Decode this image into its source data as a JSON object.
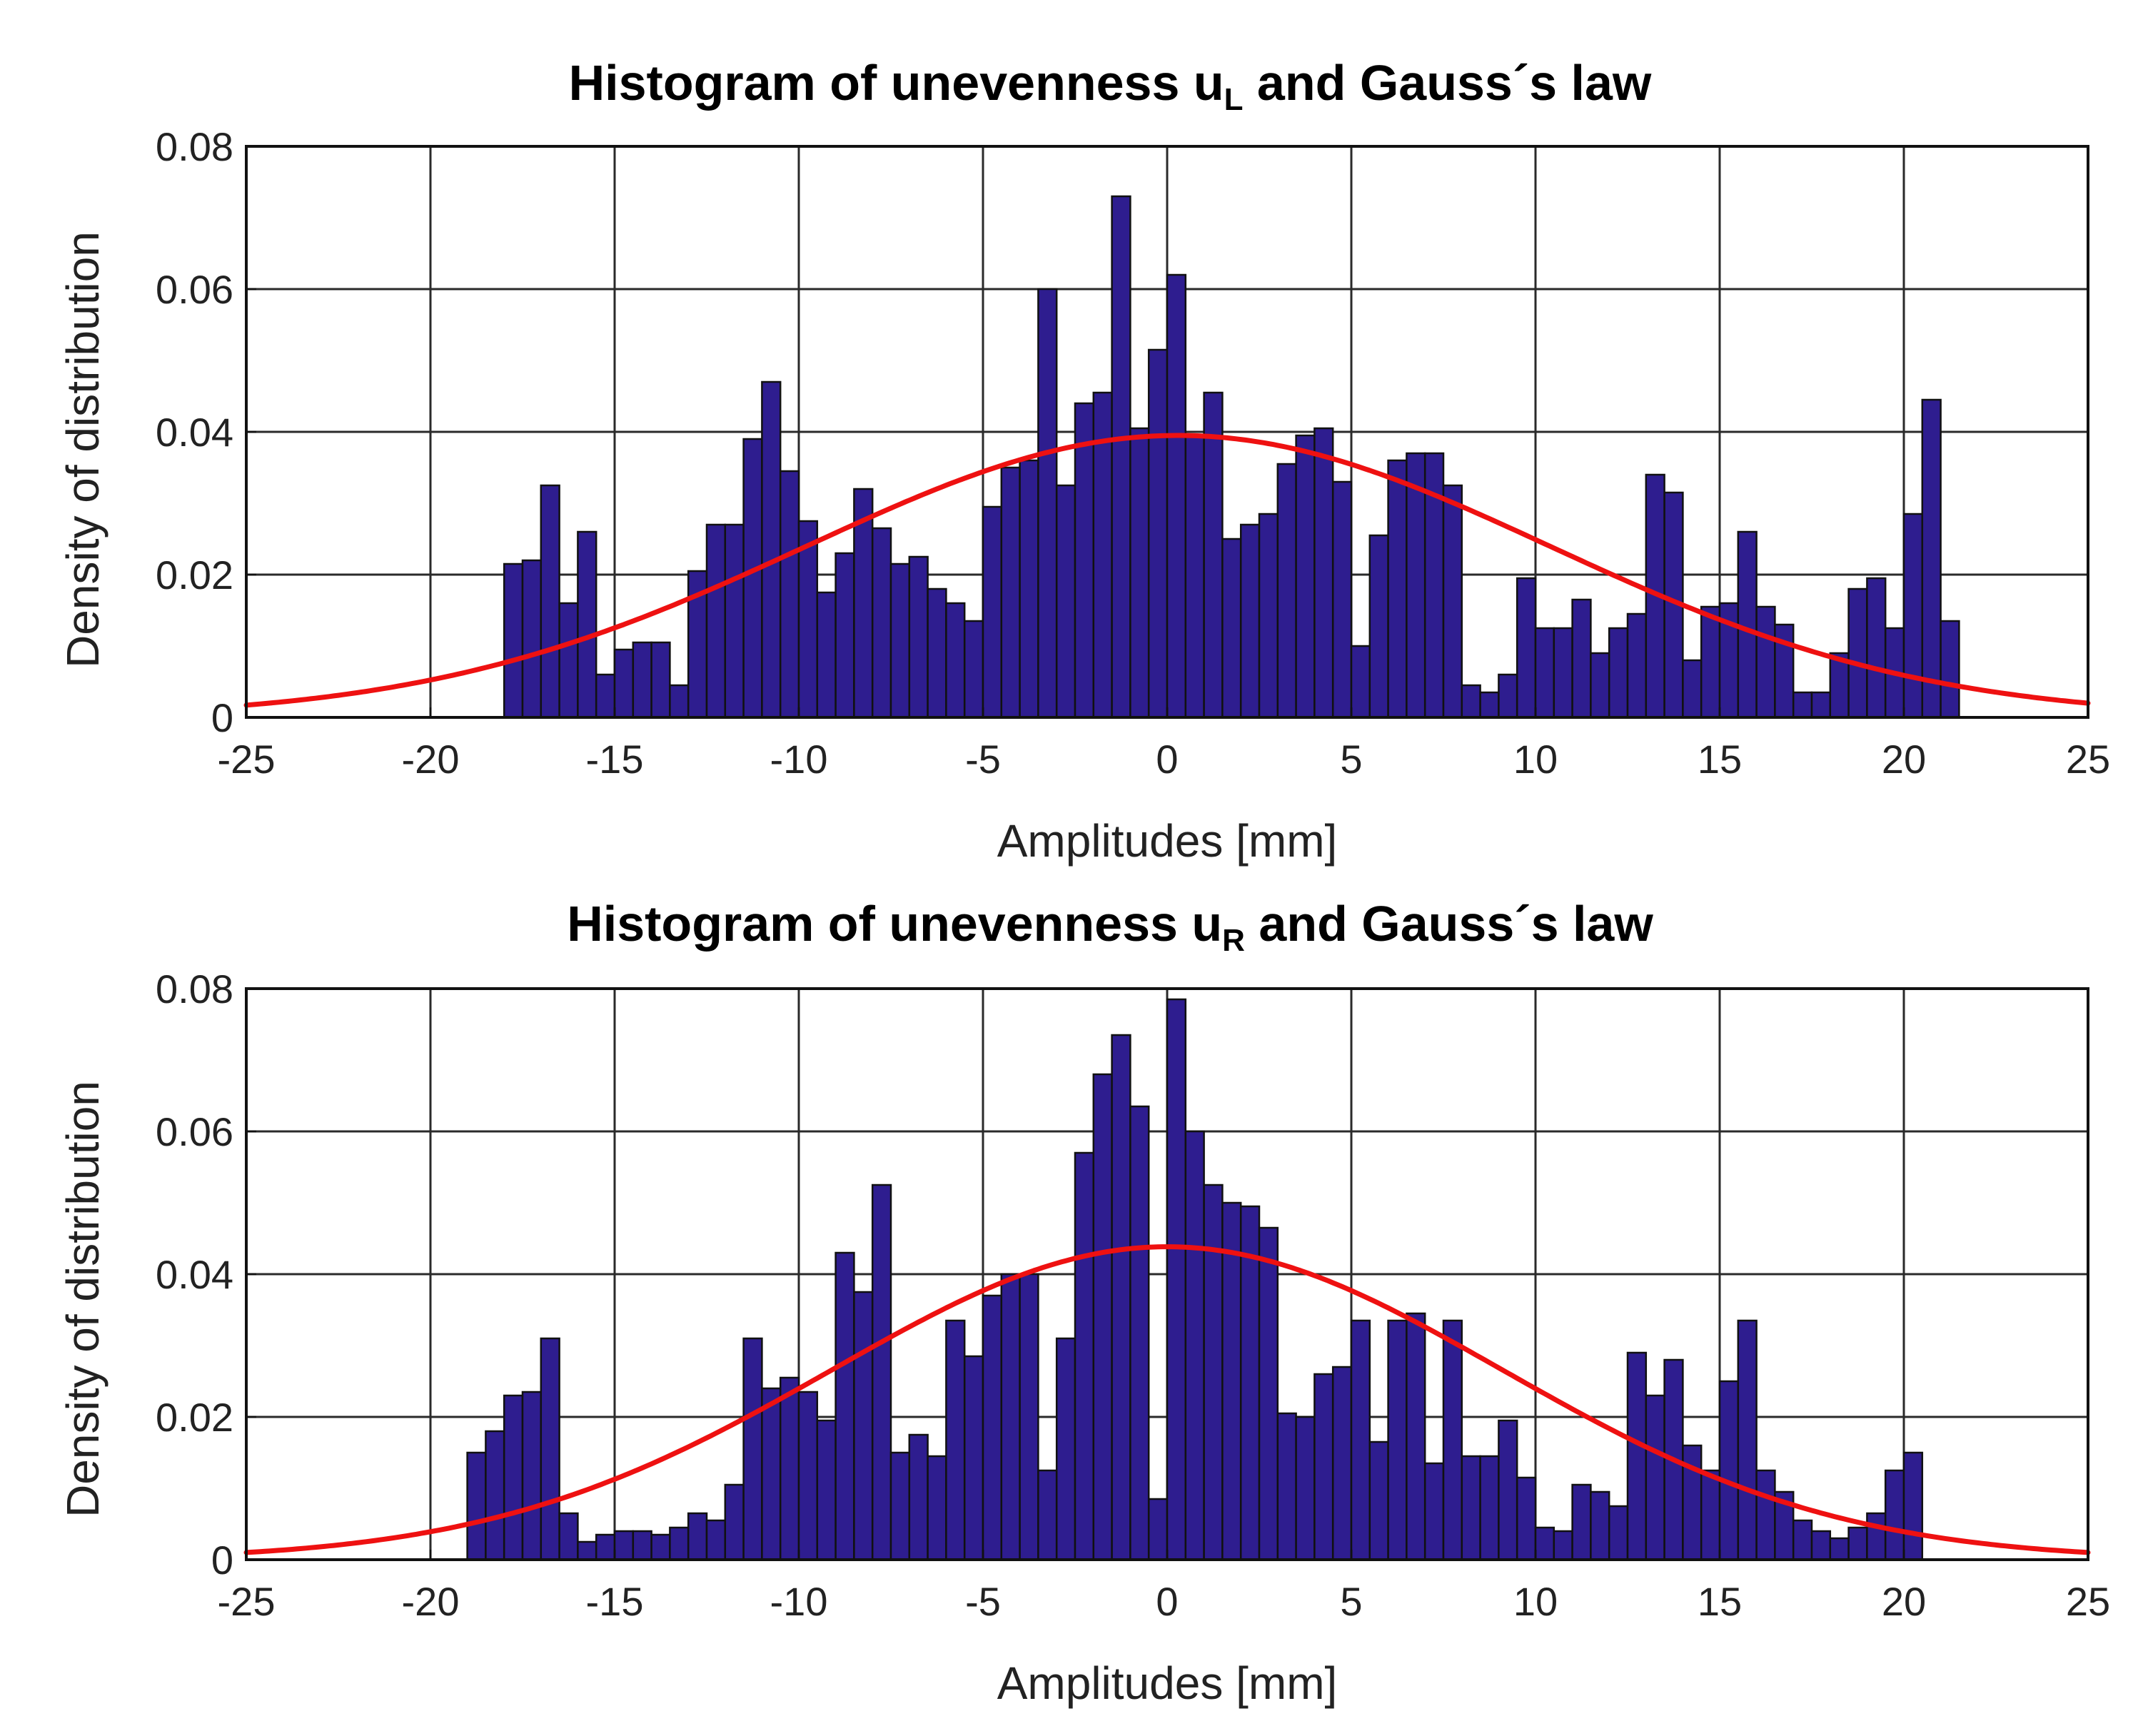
{
  "colors": {
    "bar_fill": "#2e1d8f",
    "curve": "#ee1111",
    "grid": "#2a2a2a",
    "background": "#ffffff"
  },
  "chart_data": [
    {
      "type": "bar",
      "title_main": "Histogram of unevenness u",
      "title_sub": "L",
      "title_tail": " and Gauss´s law",
      "xlabel": "Amplitudes [mm]",
      "ylabel": "Density of distribution",
      "xlim": [
        -25,
        25
      ],
      "ylim": [
        0,
        0.08
      ],
      "xticks": [
        "-25",
        "-20",
        "-15",
        "-10",
        "-5",
        "0",
        "5",
        "10",
        "15",
        "20",
        "25"
      ],
      "yticks": [
        "0",
        "0.02",
        "0.04",
        "0.06",
        "0.08"
      ],
      "grid": true,
      "bin_start": -18,
      "bin_width": 0.5,
      "values": [
        0.0215,
        0.022,
        0.0325,
        0.016,
        0.026,
        0.006,
        0.0095,
        0.0105,
        0.0105,
        0.0045,
        0.0205,
        0.027,
        0.027,
        0.039,
        0.047,
        0.0345,
        0.0275,
        0.0175,
        0.023,
        0.032,
        0.0265,
        0.0215,
        0.0225,
        0.018,
        0.016,
        0.0135,
        0.0295,
        0.035,
        0.036,
        0.06,
        0.0325,
        0.044,
        0.0455,
        0.073,
        0.0405,
        0.0515,
        0.062,
        0.0395,
        0.0455,
        0.025,
        0.027,
        0.0285,
        0.0355,
        0.0395,
        0.0405,
        0.033,
        0.01,
        0.0255,
        0.036,
        0.037,
        0.037,
        0.0325,
        0.0045,
        0.0035,
        0.006,
        0.0195,
        0.0125,
        0.0125,
        0.0165,
        0.009,
        0.0125,
        0.0145,
        0.034,
        0.0315,
        0.008,
        0.0155,
        0.016,
        0.026,
        0.0155,
        0.013,
        0.0035,
        0.0035,
        0.009,
        0.018,
        0.0195,
        0.0125,
        0.0285,
        0.0445,
        0.0135
      ],
      "gauss": {
        "mean": 0.3,
        "std": 10.1
      }
    },
    {
      "type": "bar",
      "title_main": "Histogram of unevenness u",
      "title_sub": "R",
      "title_tail": " and Gauss´s law",
      "xlabel": "Amplitudes [mm]",
      "ylabel": "Density of distribution",
      "xlim": [
        -25,
        25
      ],
      "ylim": [
        0,
        0.08
      ],
      "xticks": [
        "-25",
        "-20",
        "-15",
        "-10",
        "-5",
        "0",
        "5",
        "10",
        "15",
        "20",
        "25"
      ],
      "yticks": [
        "0",
        "0.02",
        "0.04",
        "0.06",
        "0.08"
      ],
      "grid": true,
      "bin_start": -19,
      "bin_width": 0.5,
      "values": [
        0.015,
        0.018,
        0.023,
        0.0235,
        0.031,
        0.0065,
        0.0025,
        0.0035,
        0.004,
        0.004,
        0.0035,
        0.0045,
        0.0065,
        0.0055,
        0.0105,
        0.031,
        0.024,
        0.0255,
        0.0235,
        0.0195,
        0.043,
        0.0375,
        0.0525,
        0.015,
        0.0175,
        0.0145,
        0.0335,
        0.0285,
        0.037,
        0.04,
        0.04,
        0.0125,
        0.031,
        0.057,
        0.068,
        0.0735,
        0.0635,
        0.0085,
        0.0785,
        0.06,
        0.0525,
        0.05,
        0.0495,
        0.0465,
        0.0205,
        0.02,
        0.026,
        0.027,
        0.0335,
        0.0165,
        0.0335,
        0.0345,
        0.0135,
        0.0335,
        0.0145,
        0.0145,
        0.0195,
        0.0115,
        0.0045,
        0.004,
        0.0105,
        0.0095,
        0.0075,
        0.029,
        0.023,
        0.028,
        0.016,
        0.0125,
        0.025,
        0.0335,
        0.0125,
        0.0095,
        0.0055,
        0.004,
        0.003,
        0.0045,
        0.0065,
        0.0125,
        0.015
      ],
      "gauss": {
        "mean": 0.0,
        "std": 9.1
      }
    }
  ]
}
